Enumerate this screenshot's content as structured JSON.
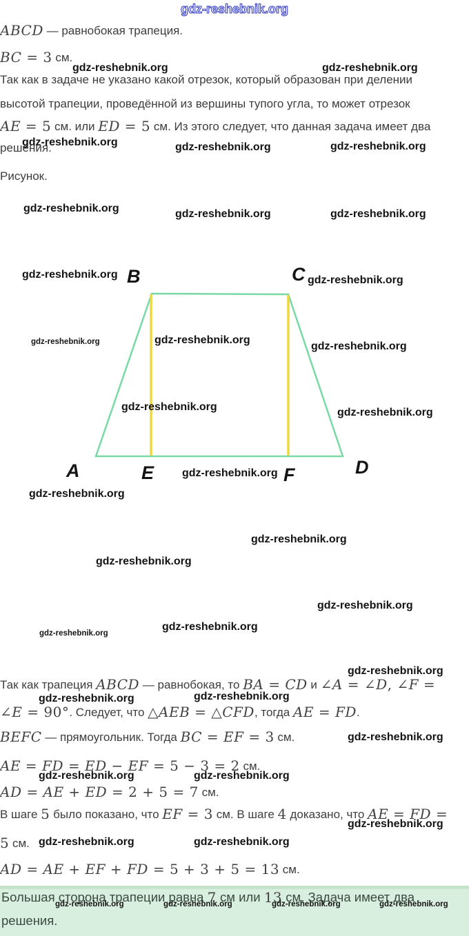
{
  "watermark": {
    "text": "gdz-reshebnik.org",
    "top_color": "#3d43c4"
  },
  "figure": {
    "labels": [
      "A",
      "B",
      "C",
      "D",
      "E",
      "F"
    ],
    "colors": {
      "outline": "#78d9a5",
      "height": "#f0d73c"
    }
  },
  "lines": [
    {
      "runs": [
        {
          "k": "m",
          "v": "ABCD"
        },
        {
          "k": "t",
          "v": " — равнобокая трапеция."
        }
      ]
    },
    {
      "runs": [
        {
          "k": "m",
          "v": "BC = 3"
        },
        {
          "k": "t",
          "v": " см."
        }
      ]
    },
    {
      "runs": [
        {
          "k": "t",
          "v": "Так как в задаче не указано какой отрезок, который образован при делении"
        }
      ]
    },
    {
      "runs": [
        {
          "k": "t",
          "v": "высотой трапеции, проведённой из вершины тупого угла, то может отрезок"
        }
      ]
    },
    {
      "runs": [
        {
          "k": "m",
          "v": "AE = 5"
        },
        {
          "k": "t",
          "v": " см. или "
        },
        {
          "k": "m",
          "v": "ED = 5"
        },
        {
          "k": "t",
          "v": " см. Из этого следует, что данная задача имеет два"
        }
      ]
    },
    {
      "runs": [
        {
          "k": "t",
          "v": "решения."
        }
      ]
    },
    {
      "runs": [
        {
          "k": "t",
          "v": "Рисунок."
        }
      ]
    },
    {
      "runs": [
        {
          "k": "t",
          "v": "Так как трапеция "
        },
        {
          "k": "m",
          "v": "ABCD"
        },
        {
          "k": "t",
          "v": " — равнобокая, то "
        },
        {
          "k": "m",
          "v": "BA = CD"
        },
        {
          "k": "t",
          "v": " и "
        },
        {
          "k": "m",
          "v": "∠A = ∠D, ∠F ="
        }
      ]
    },
    {
      "runs": [
        {
          "k": "m",
          "v": "∠E = 90°"
        },
        {
          "k": "t",
          "v": ". Следует, что "
        },
        {
          "k": "m",
          "v": "△AEB = △CFD"
        },
        {
          "k": "t",
          "v": ", тогда "
        },
        {
          "k": "m",
          "v": "AE = FD"
        },
        {
          "k": "t",
          "v": "."
        }
      ]
    },
    {
      "runs": [
        {
          "k": "m",
          "v": "BEFC"
        },
        {
          "k": "t",
          "v": " — прямоугольник. Тогда "
        },
        {
          "k": "m",
          "v": "BC = EF = 3"
        },
        {
          "k": "t",
          "v": " см."
        }
      ]
    },
    {
      "runs": [
        {
          "k": "m",
          "v": "AE = FD = ED − EF = 5 − 3 = 2"
        },
        {
          "k": "t",
          "v": " см."
        }
      ]
    },
    {
      "runs": [
        {
          "k": "m",
          "v": "AD = AE + ED = 2 + 5 = 7"
        },
        {
          "k": "t",
          "v": " см."
        }
      ]
    },
    {
      "runs": [
        {
          "k": "t",
          "v": "В шаге "
        },
        {
          "k": "m",
          "v": "5"
        },
        {
          "k": "t",
          "v": " было показано, что "
        },
        {
          "k": "m",
          "v": "EF = 3"
        },
        {
          "k": "t",
          "v": " см. В шаге "
        },
        {
          "k": "m",
          "v": "4"
        },
        {
          "k": "t",
          "v": " доказано, что "
        },
        {
          "k": "m",
          "v": "AE = FD ="
        }
      ]
    },
    {
      "runs": [
        {
          "k": "m",
          "v": "5"
        },
        {
          "k": "t",
          "v": " см."
        }
      ]
    },
    {
      "runs": [
        {
          "k": "m",
          "v": "AD = AE + EF + FD = 5 + 3 + 5 = 13"
        },
        {
          "k": "t",
          "v": " см."
        }
      ]
    },
    {
      "runs": [
        {
          "k": "t",
          "v": "Большая сторона трапеции равна "
        },
        {
          "k": "m",
          "v": "7"
        },
        {
          "k": "t",
          "v": " см или "
        },
        {
          "k": "m",
          "v": "13"
        },
        {
          "k": "t",
          "v": " см. Задача имеет два"
        }
      ]
    },
    {
      "runs": [
        {
          "k": "t",
          "v": "решения."
        }
      ]
    }
  ]
}
